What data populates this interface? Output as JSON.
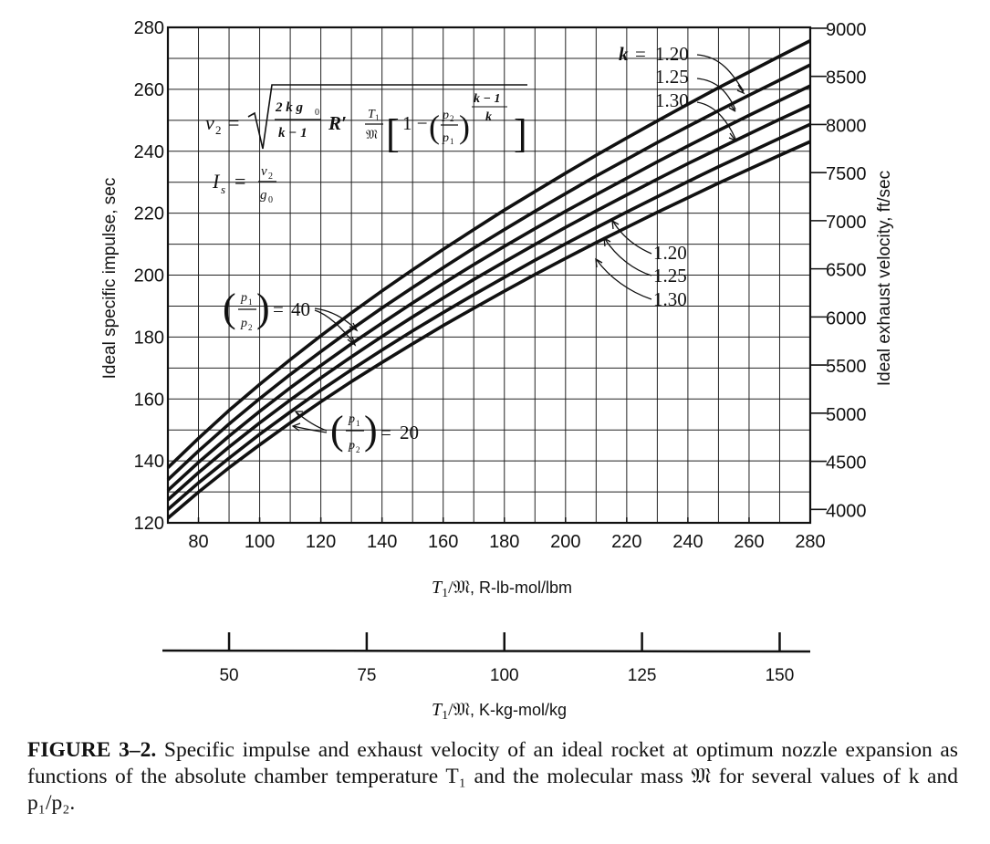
{
  "chart_data": {
    "type": "line",
    "x": [
      70,
      80,
      90,
      100,
      110,
      120,
      130,
      140,
      150,
      160,
      170,
      180,
      190,
      200,
      210,
      220,
      230,
      240,
      250,
      260,
      270,
      280
    ],
    "xlabel_var": "T",
    "xlabel_sub": "1",
    "xlabel_mid": "/𝔐",
    "xlabel_units": ", R-lb-mol/lbm",
    "xlim": [
      70,
      280
    ],
    "x_ticks": [
      "80",
      "100",
      "120",
      "140",
      "160",
      "180",
      "200",
      "220",
      "240",
      "260",
      "280"
    ],
    "ylabel_left": "Ideal specific impulse, sec",
    "ylim_left": [
      120,
      280
    ],
    "y_ticks_left": [
      "120",
      "140",
      "160",
      "180",
      "200",
      "220",
      "240",
      "260",
      "280"
    ],
    "ylabel_right": "Ideal exhaust velocity, ft/sec",
    "y_ticks_right": [
      "4000",
      "4500",
      "5000",
      "5500",
      "6000",
      "6500",
      "7000",
      "7500",
      "8000",
      "8500",
      "9000"
    ],
    "grid": true,
    "series": [
      {
        "pressure_ratio": "40",
        "k": "1.20",
        "values": [
          137.8,
          147.3,
          156.3,
          164.7,
          172.7,
          180.4,
          187.8,
          194.9,
          201.7,
          208.3,
          214.7,
          221.0,
          227.0,
          232.9,
          238.7,
          244.3,
          249.8,
          255.2,
          260.5,
          265.6,
          270.7,
          275.7
        ]
      },
      {
        "pressure_ratio": "40",
        "k": "1.25",
        "values": [
          133.9,
          143.2,
          151.9,
          160.1,
          167.9,
          175.3,
          182.5,
          189.4,
          196.0,
          202.4,
          208.7,
          214.7,
          220.6,
          226.3,
          232.0,
          237.4,
          242.8,
          248.0,
          253.1,
          258.1,
          263.0,
          267.9
        ]
      },
      {
        "pressure_ratio": "40",
        "k": "1.30",
        "values": [
          130.5,
          139.5,
          148.0,
          156.0,
          163.6,
          170.8,
          177.8,
          184.5,
          191.0,
          197.3,
          203.4,
          209.3,
          215.0,
          220.6,
          226.0,
          231.3,
          236.6,
          241.7,
          246.7,
          251.6,
          256.4,
          261.1
        ]
      },
      {
        "pressure_ratio": "20",
        "k": "1.20",
        "values": [
          127.4,
          136.2,
          144.5,
          152.3,
          159.7,
          166.8,
          173.6,
          180.2,
          186.5,
          192.6,
          198.6,
          204.3,
          209.9,
          215.4,
          220.7,
          225.9,
          231.0,
          236.0,
          240.8,
          245.6,
          250.3,
          254.9
        ]
      },
      {
        "pressure_ratio": "20",
        "k": "1.25",
        "values": [
          124.3,
          132.9,
          140.9,
          148.6,
          155.8,
          162.8,
          169.4,
          175.8,
          182.0,
          187.9,
          193.7,
          199.3,
          204.8,
          210.1,
          215.3,
          220.4,
          225.3,
          230.2,
          235.0,
          239.6,
          244.2,
          248.7
        ]
      },
      {
        "pressure_ratio": "20",
        "k": "1.30",
        "values": [
          121.5,
          129.9,
          137.8,
          145.2,
          152.3,
          159.1,
          165.6,
          171.8,
          177.8,
          183.7,
          189.3,
          194.8,
          200.2,
          205.4,
          210.5,
          215.4,
          220.3,
          225.0,
          229.7,
          234.2,
          238.7,
          243.1
        ]
      }
    ],
    "annotations": {
      "k_label": "k",
      "k_top": [
        "1.20",
        "1.25",
        "1.30"
      ],
      "k_mid": [
        "1.20",
        "1.25",
        "1.30"
      ],
      "ratio_40": "40",
      "ratio_20": "20"
    },
    "second_axis": {
      "xlabel_var": "T",
      "xlabel_sub": "1",
      "xlabel_mid": "/𝔐",
      "xlabel_units": ", K-kg-mol/kg",
      "ticks": [
        {
          "label": "50",
          "value": 50
        },
        {
          "label": "75",
          "value": 75
        },
        {
          "label": "100",
          "value": 100
        },
        {
          "label": "125",
          "value": 125
        },
        {
          "label": "150",
          "value": 150
        }
      ]
    }
  },
  "caption": {
    "label": "FIGURE 3–2.",
    "text": " Specific impulse and exhaust velocity of an ideal rocket at optimum nozzle expansion as functions of the absolute chamber temperature T₁ and the molecular mass 𝔐 for several values of k and p₁/p₂."
  }
}
